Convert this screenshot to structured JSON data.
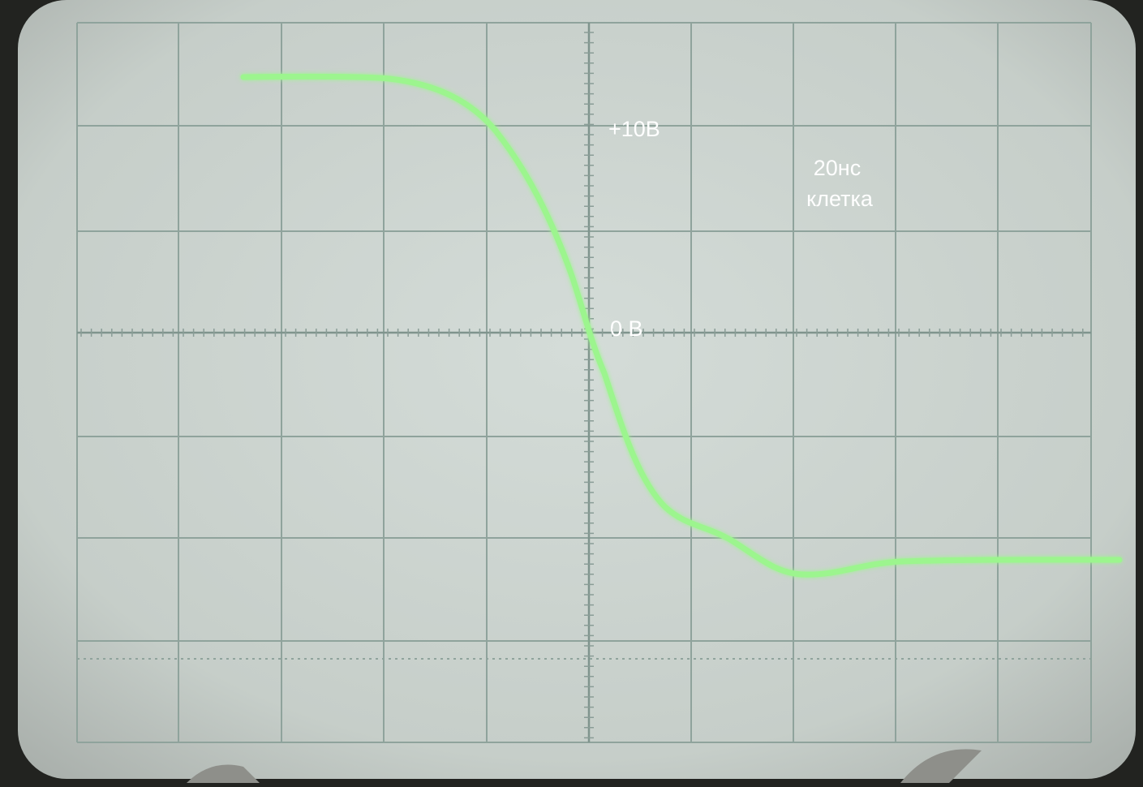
{
  "screen": {
    "labels": {
      "plus_10v": "+10В",
      "zero_v": "0 В",
      "time_per_div": "20нс",
      "cell": "клетка"
    }
  }
}
